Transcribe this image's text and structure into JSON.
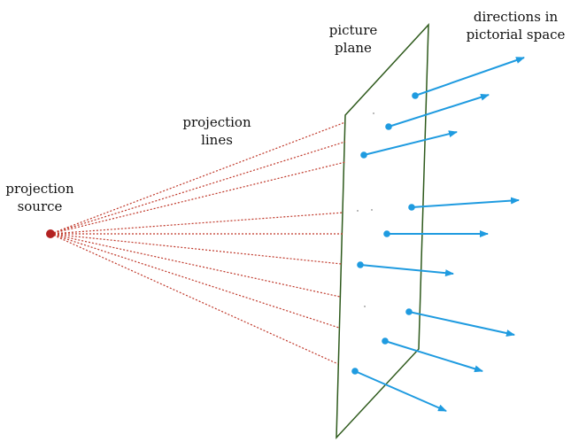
{
  "labels": {
    "projection_source": [
      "projection",
      "source"
    ],
    "projection_lines": [
      "projection",
      "lines"
    ],
    "picture_plane": [
      "picture",
      "plane"
    ],
    "directions": [
      "directions in",
      "pictorial space"
    ]
  },
  "colors": {
    "projection_line": "#c0392b",
    "source_dot": "#b22222",
    "picture_plane_edge": "#2e5a1c",
    "direction_arrow": "#1f9be0"
  }
}
